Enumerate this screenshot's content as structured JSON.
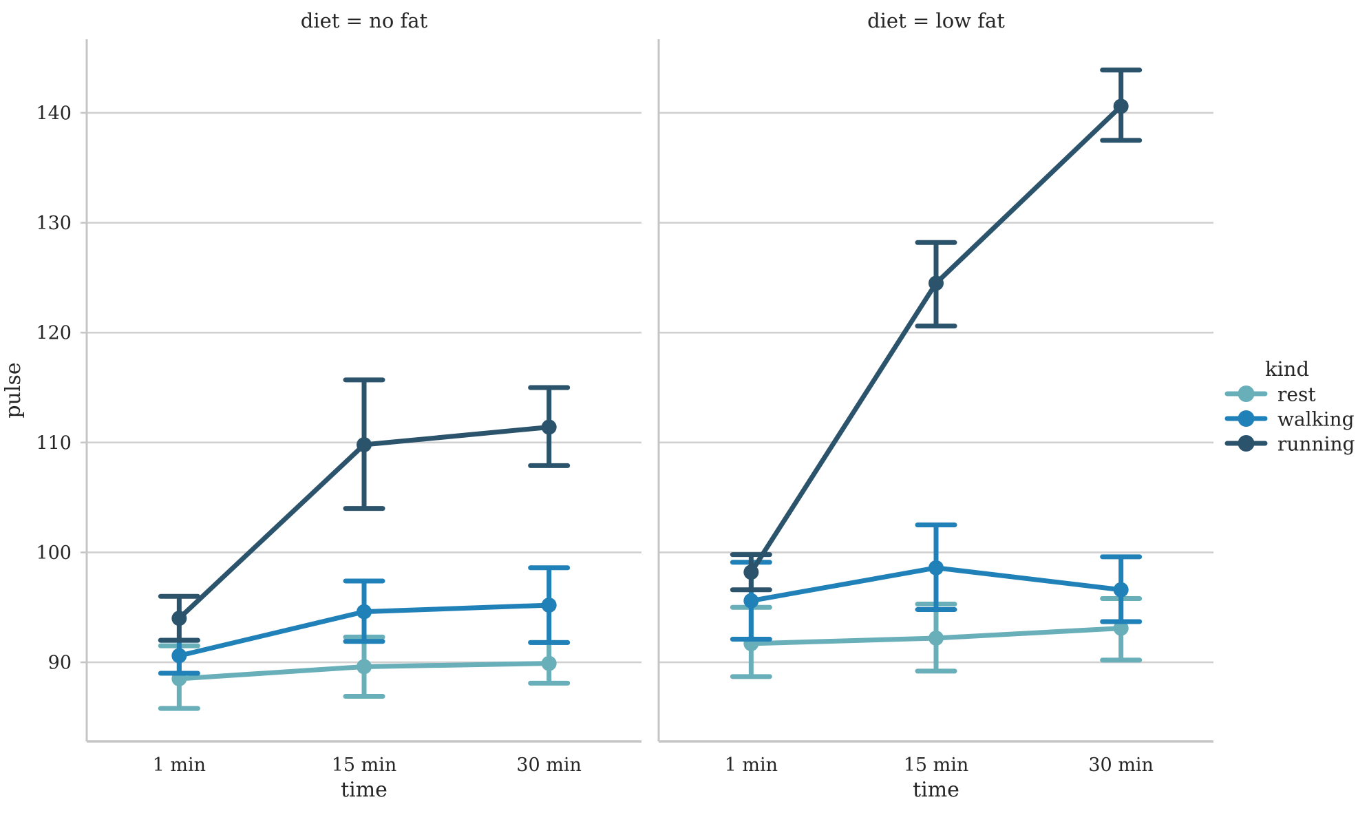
{
  "figure": {
    "background": "#ffffff"
  },
  "chart_data": {
    "type": "line",
    "subtype": "point-plot with 95% CI error bars and caps, faceted by diet",
    "categories": [
      "1 min",
      "15 min",
      "30 min"
    ],
    "xlabel": "time",
    "ylabel": "pulse",
    "y_ticks": [
      90,
      100,
      110,
      120,
      130,
      140
    ],
    "ylim": [
      82.8,
      146.7
    ],
    "grid": true,
    "legend": {
      "title": "kind",
      "position": "right",
      "entries": [
        "rest",
        "walking",
        "running"
      ]
    },
    "colors": {
      "rest": "#68afb9",
      "walking": "#2081b8",
      "running": "#2b536b",
      "grid": "#d0d0d0",
      "spine": "#c6c6c6",
      "text": "#262626",
      "background": "#ffffff"
    },
    "facets": [
      {
        "title": "diet = no fat",
        "series": [
          {
            "name": "rest",
            "color": "#68afb9",
            "values": [
              88.5,
              89.6,
              89.9
            ],
            "ci": [
              [
                85.8,
                91.5
              ],
              [
                86.9,
                92.3
              ],
              [
                88.1,
                91.8
              ]
            ]
          },
          {
            "name": "walking",
            "color": "#2081b8",
            "values": [
              90.6,
              94.6,
              95.2
            ],
            "ci": [
              [
                89.0,
                92.0
              ],
              [
                91.9,
                97.4
              ],
              [
                91.8,
                98.6
              ]
            ]
          },
          {
            "name": "running",
            "color": "#2b536b",
            "values": [
              94.0,
              109.8,
              111.4
            ],
            "ci": [
              [
                92.0,
                96.0
              ],
              [
                104.0,
                115.7
              ],
              [
                107.9,
                115.0
              ]
            ]
          }
        ]
      },
      {
        "title": "diet = low fat",
        "series": [
          {
            "name": "rest",
            "color": "#68afb9",
            "values": [
              91.7,
              92.2,
              93.1
            ],
            "ci": [
              [
                88.7,
                95.0
              ],
              [
                89.2,
                95.3
              ],
              [
                90.2,
                95.8
              ]
            ]
          },
          {
            "name": "walking",
            "color": "#2081b8",
            "values": [
              95.6,
              98.6,
              96.6
            ],
            "ci": [
              [
                92.1,
                99.1
              ],
              [
                94.8,
                102.5
              ],
              [
                93.7,
                99.6
              ]
            ]
          },
          {
            "name": "running",
            "color": "#2b536b",
            "values": [
              98.2,
              124.5,
              140.6
            ],
            "ci": [
              [
                96.6,
                99.8
              ],
              [
                120.6,
                128.2
              ],
              [
                137.5,
                143.9
              ]
            ]
          }
        ]
      }
    ]
  }
}
